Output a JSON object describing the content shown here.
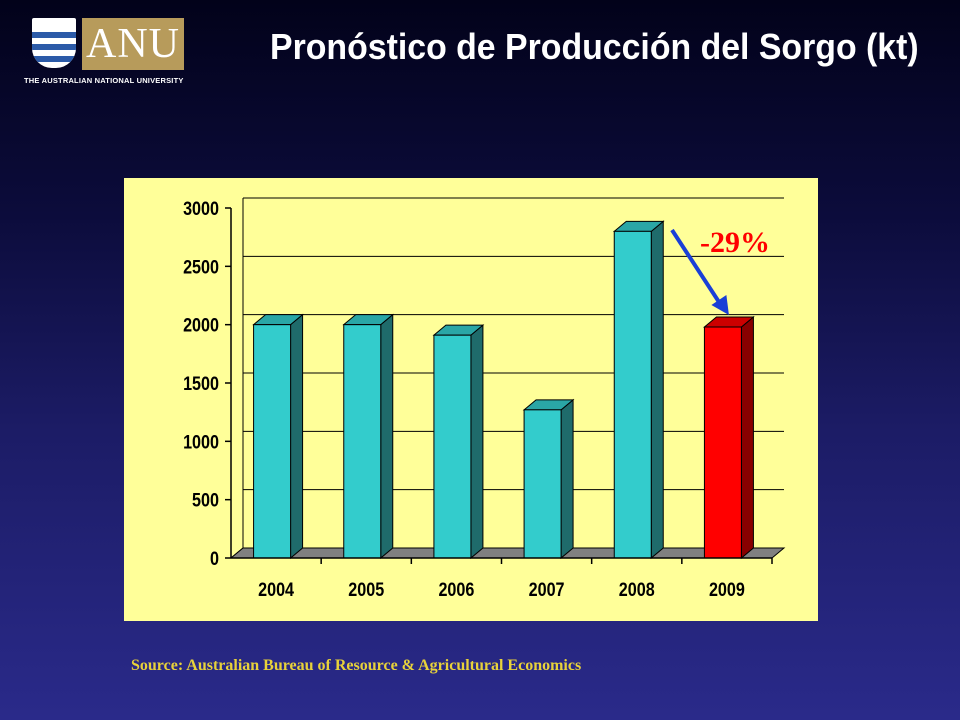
{
  "logo": {
    "wordmark": "ANU",
    "subtitle": "THE AUSTRALIAN NATIONAL UNIVERSITY"
  },
  "slide": {
    "title": "Pronóstico de Producción del Sorgo (kt)",
    "source": "Source: Australian Bureau of Resource & Agricultural Economics"
  },
  "chart_data": {
    "type": "bar",
    "categories": [
      "2004",
      "2005",
      "2006",
      "2007",
      "2008",
      "2009"
    ],
    "values": [
      2000,
      2000,
      1910,
      1270,
      2800,
      1980
    ],
    "ylim": [
      0,
      3000
    ],
    "yticks": [
      0,
      500,
      1000,
      1500,
      2000,
      2500,
      3000
    ],
    "grid": true,
    "annotation": {
      "text": "-29%",
      "target_category": "2009",
      "color": "#ff0000",
      "arrow_color": "#1a3fd6"
    },
    "bar_color": "#33cccc",
    "highlight_color": "#ff0000",
    "highlight_category": "2009",
    "panel_color": "#ffff99"
  }
}
